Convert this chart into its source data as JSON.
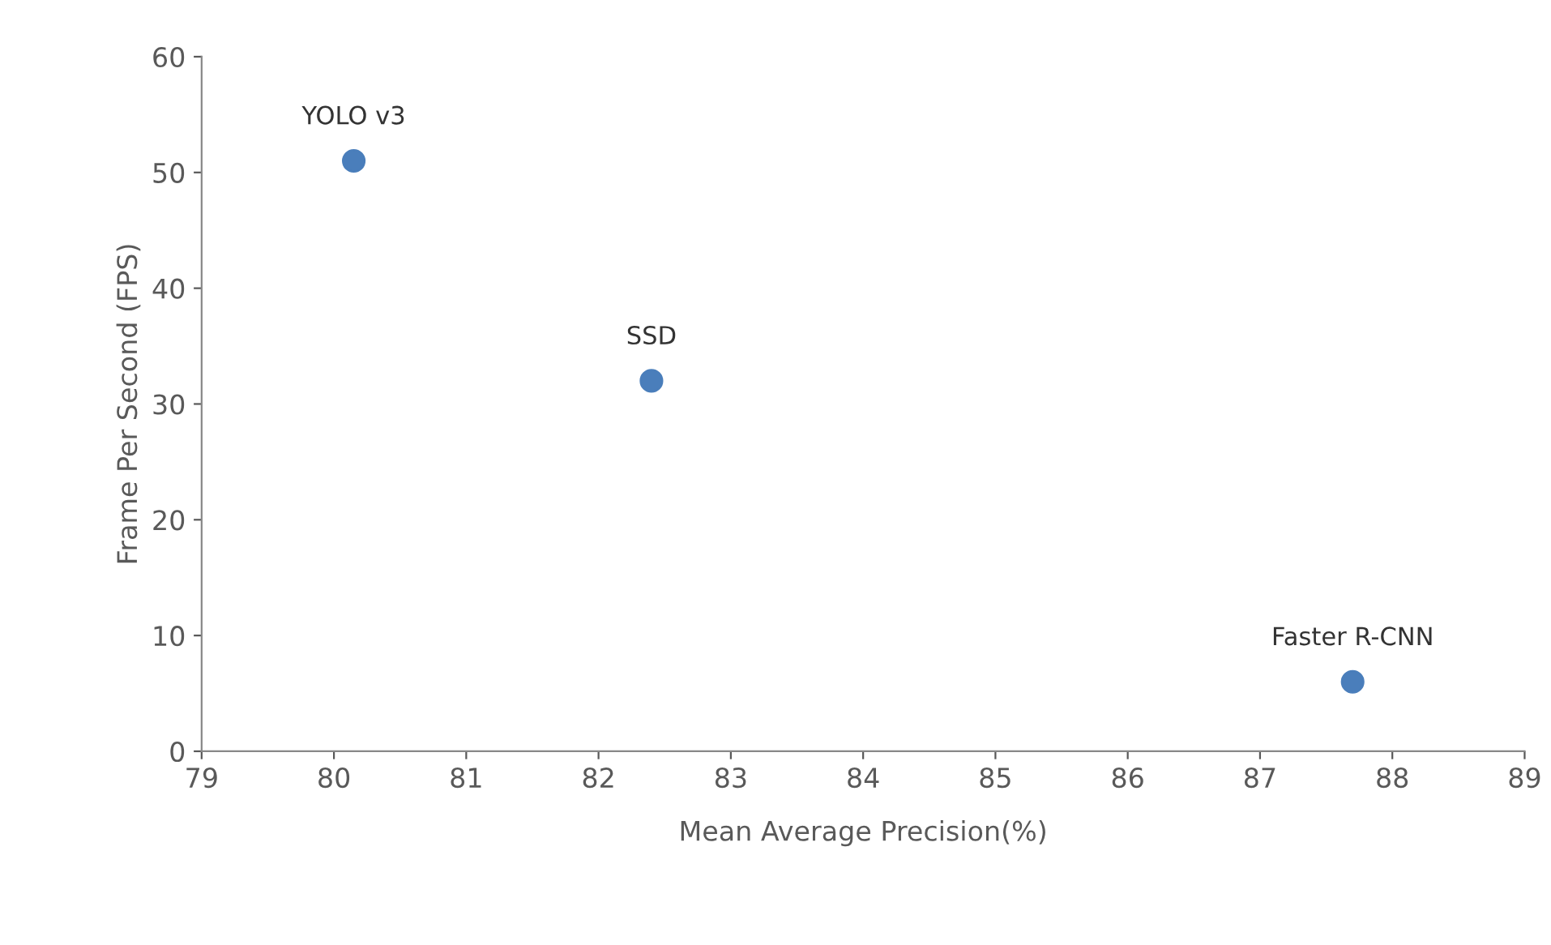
{
  "chart_data": {
    "type": "scatter",
    "xlabel": "Mean Average Precision(%)",
    "ylabel": "Frame Per Second (FPS)",
    "x": [
      80.15,
      82.4,
      87.7
    ],
    "series": [
      {
        "color": "#4a7ebb",
        "values": [
          51,
          32,
          6
        ]
      }
    ],
    "annotations": [
      {
        "text": "YOLO v3",
        "x": 80.15,
        "y": 51
      },
      {
        "text": "SSD",
        "x": 82.4,
        "y": 32
      },
      {
        "text": "Faster R-CNN",
        "x": 87.7,
        "y": 6
      }
    ],
    "xlim": [
      79,
      89
    ],
    "xticks": [
      79,
      80,
      81,
      82,
      83,
      84,
      85,
      86,
      87,
      88,
      89
    ],
    "ylim": [
      0,
      60
    ],
    "yticks": [
      0,
      10,
      20,
      30,
      40,
      50,
      60
    ],
    "grid": false,
    "legend": false,
    "marker": "circle"
  }
}
